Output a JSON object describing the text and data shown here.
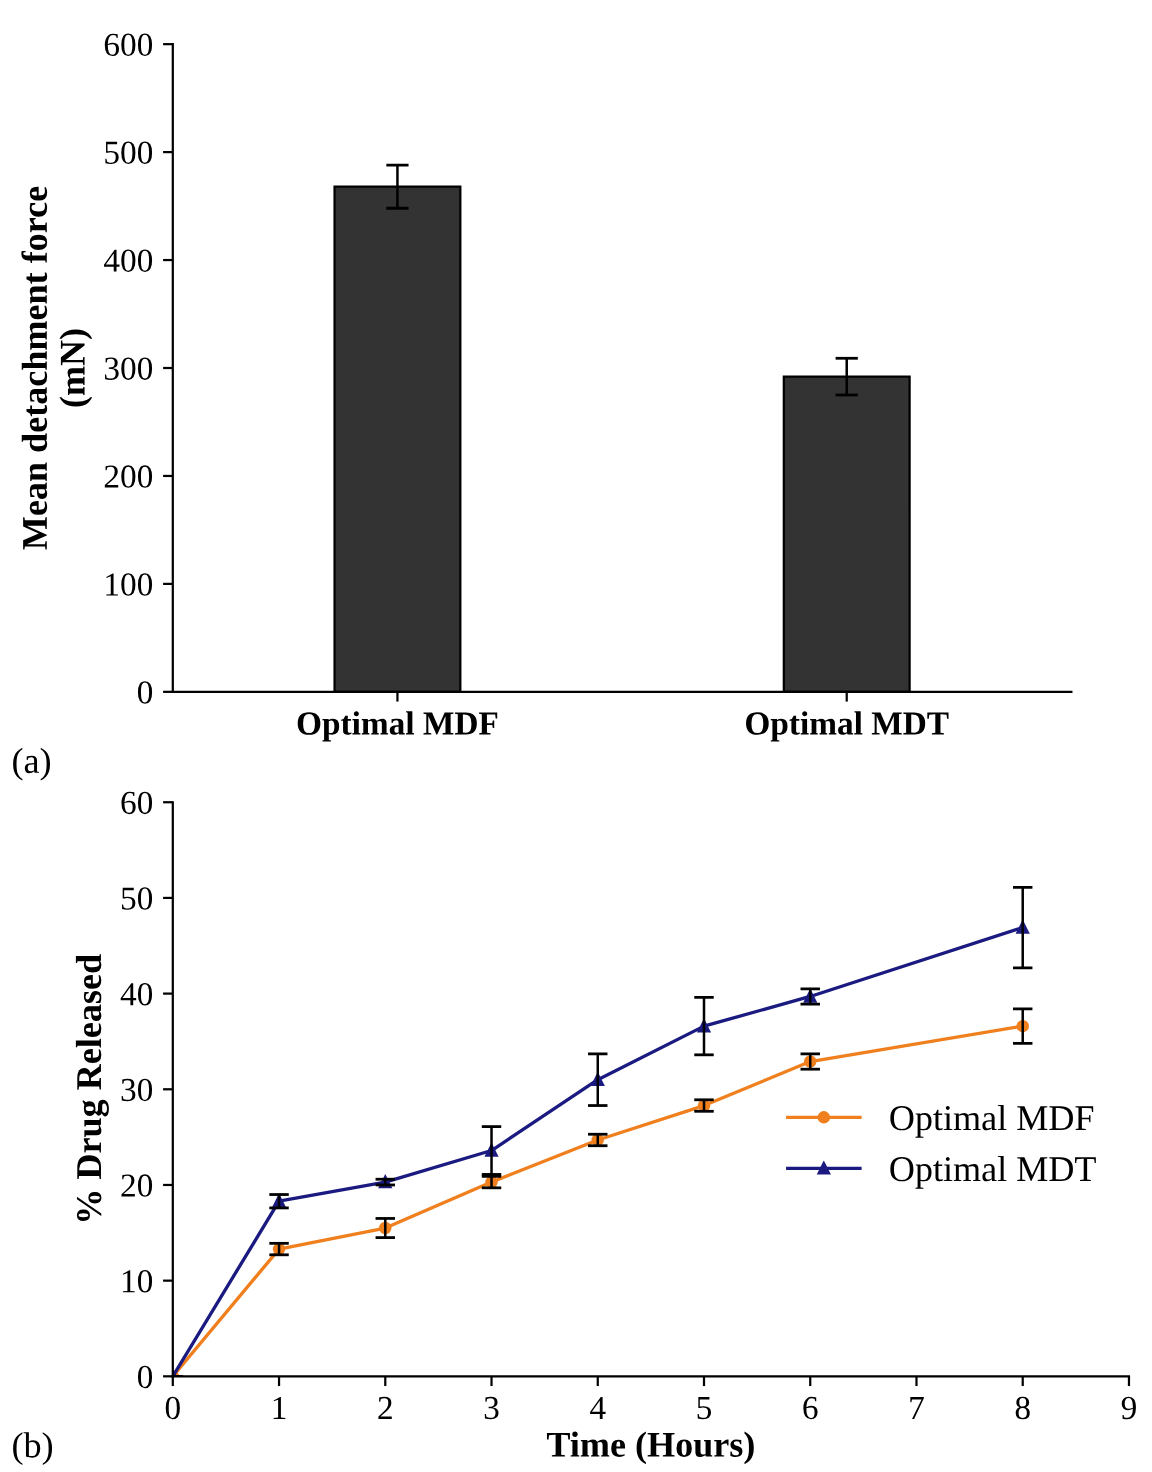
{
  "chart_data": [
    {
      "type": "bar",
      "ylabel": "Mean detachment force\n(mN)",
      "categories": [
        "Optimal MDF",
        "Optimal MDT"
      ],
      "values": [
        468,
        292
      ],
      "errors": [
        20,
        17
      ],
      "color": "#333333",
      "ylim": [
        0,
        600
      ],
      "yticks": [
        0,
        100,
        200,
        300,
        400,
        500,
        600
      ],
      "grid": false,
      "annotations": [
        "(a)"
      ]
    },
    {
      "type": "line",
      "xlabel": "Time (Hours)",
      "ylabel": "% Drug Released",
      "x": [
        0,
        1,
        2,
        3,
        4,
        5,
        6,
        8
      ],
      "xlim": [
        0,
        9
      ],
      "xticks": [
        0,
        1,
        2,
        3,
        4,
        5,
        6,
        7,
        8,
        9
      ],
      "ylim": [
        0,
        60
      ],
      "yticks": [
        0,
        10,
        20,
        30,
        40,
        50,
        60
      ],
      "grid": false,
      "legend": "right",
      "line_style": "solid",
      "annotations": [
        "(b)"
      ],
      "series": [
        {
          "name": "Optimal MDF",
          "color": "#f07f1e",
          "marker": "circle",
          "values": [
            0,
            13.3,
            15.5,
            20.3,
            24.7,
            28.3,
            32.9,
            36.6
          ],
          "errors": [
            null,
            0.6,
            1.0,
            0.6,
            0.6,
            0.6,
            0.8,
            1.8
          ]
        },
        {
          "name": "Optimal MDT",
          "color": "#1a1a80",
          "marker": "triangle",
          "values": [
            0,
            18.3,
            20.3,
            23.6,
            31.0,
            36.6,
            39.7,
            46.9
          ],
          "errors": [
            null,
            0.7,
            0.3,
            2.5,
            2.7,
            3.0,
            0.8,
            4.2
          ]
        }
      ]
    }
  ]
}
